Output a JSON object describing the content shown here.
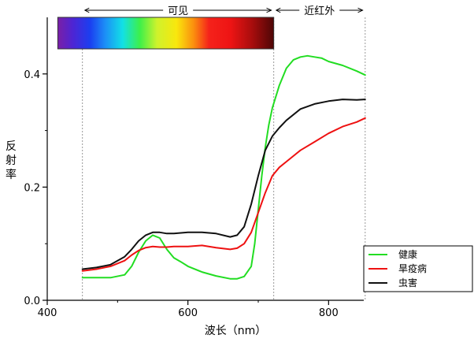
{
  "chart_data": {
    "type": "line",
    "xlabel": "波长（nm）",
    "ylabel": "反射率",
    "xlim": [
      400,
      850
    ],
    "ylim": [
      0,
      0.5
    ],
    "x_ticks": [
      "400",
      "600",
      "800"
    ],
    "y_ticks": [
      "0.0",
      "0.2",
      "0.4"
    ],
    "grid": false,
    "legend_placement": "bottom-right",
    "regions": [
      {
        "label": "可见",
        "from": 450,
        "to": 722
      },
      {
        "label": "近红外",
        "from": 722,
        "to": 852
      }
    ],
    "spectrum_bar": {
      "from": 415,
      "to": 722
    },
    "series": [
      {
        "name": "健康",
        "color": "#22dd22",
        "x": [
          450,
          470,
          490,
          510,
          520,
          530,
          540,
          550,
          560,
          570,
          580,
          590,
          600,
          620,
          640,
          660,
          670,
          680,
          690,
          695,
          700,
          705,
          710,
          715,
          720,
          730,
          740,
          750,
          760,
          770,
          780,
          790,
          800,
          820,
          840,
          852
        ],
        "y": [
          0.04,
          0.04,
          0.04,
          0.045,
          0.06,
          0.085,
          0.105,
          0.115,
          0.11,
          0.09,
          0.075,
          0.068,
          0.06,
          0.05,
          0.043,
          0.038,
          0.038,
          0.042,
          0.06,
          0.1,
          0.16,
          0.22,
          0.27,
          0.31,
          0.34,
          0.38,
          0.41,
          0.425,
          0.43,
          0.432,
          0.43,
          0.428,
          0.422,
          0.415,
          0.405,
          0.398
        ]
      },
      {
        "name": "旱疫病",
        "color": "#ee1111",
        "x": [
          450,
          470,
          490,
          510,
          520,
          530,
          540,
          550,
          560,
          570,
          580,
          600,
          620,
          640,
          660,
          670,
          680,
          690,
          700,
          710,
          720,
          730,
          740,
          760,
          780,
          800,
          820,
          840,
          852
        ],
        "y": [
          0.052,
          0.055,
          0.06,
          0.07,
          0.08,
          0.088,
          0.093,
          0.095,
          0.094,
          0.094,
          0.095,
          0.095,
          0.097,
          0.093,
          0.09,
          0.092,
          0.1,
          0.12,
          0.155,
          0.19,
          0.22,
          0.235,
          0.245,
          0.265,
          0.28,
          0.295,
          0.307,
          0.315,
          0.322
        ]
      },
      {
        "name": "虫害",
        "color": "#111111",
        "x": [
          450,
          470,
          490,
          510,
          520,
          530,
          540,
          550,
          560,
          570,
          580,
          600,
          620,
          640,
          660,
          670,
          680,
          690,
          700,
          710,
          720,
          730,
          740,
          760,
          780,
          800,
          820,
          840,
          852
        ],
        "y": [
          0.055,
          0.058,
          0.063,
          0.077,
          0.09,
          0.105,
          0.115,
          0.12,
          0.12,
          0.118,
          0.118,
          0.12,
          0.12,
          0.118,
          0.112,
          0.115,
          0.13,
          0.17,
          0.22,
          0.265,
          0.29,
          0.305,
          0.318,
          0.338,
          0.347,
          0.352,
          0.355,
          0.354,
          0.355
        ]
      }
    ]
  }
}
